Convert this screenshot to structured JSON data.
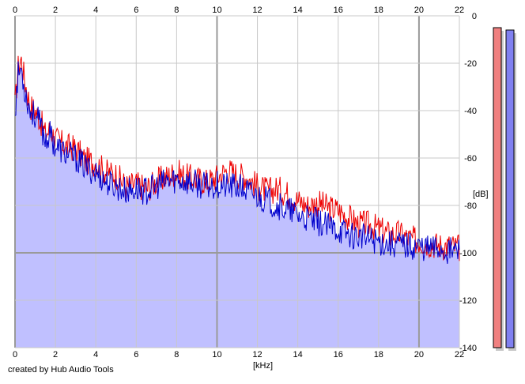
{
  "footer": {
    "credit": "created by Hub Audio Tools"
  },
  "colors": {
    "background": "#ffffff",
    "plot_fill": "#c0c0ff",
    "grid_minor": "#c8c8c8",
    "grid_major": "#9a9a9a",
    "left_channel": "#ee0000",
    "right_channel": "#0000cc",
    "left_meter": "#f08080",
    "right_meter": "#8080f0",
    "meter_shadow": "#c8c8c8"
  },
  "meters": {
    "left": {
      "name": "left-channel-level-meter",
      "level_db": -5
    },
    "right": {
      "name": "right-channel-level-meter",
      "level_db": -6
    }
  },
  "chart_data": {
    "type": "line",
    "xlabel": "[kHz]",
    "ylabel": "[dB]",
    "xlim": [
      0,
      22
    ],
    "ylim": [
      -140,
      0
    ],
    "x_ticks": [
      0,
      2,
      4,
      6,
      8,
      10,
      12,
      14,
      16,
      18,
      20,
      22
    ],
    "y_ticks": [
      0,
      -20,
      -40,
      -60,
      -80,
      -100,
      -120,
      -140
    ],
    "grid": true,
    "legend": "none",
    "series": [
      {
        "color": "#ee0000",
        "x": [
          0,
          0.15,
          0.3,
          0.5,
          0.75,
          1,
          1.25,
          1.5,
          1.75,
          2,
          2.5,
          3,
          3.5,
          4,
          4.5,
          5,
          5.5,
          6,
          6.5,
          7,
          7.5,
          8,
          8.5,
          9,
          9.5,
          10,
          10.5,
          11,
          11.5,
          12,
          12.5,
          13,
          13.5,
          14,
          14.5,
          15,
          15.5,
          16,
          16.5,
          17,
          17.5,
          18,
          18.5,
          19,
          19.5,
          20,
          20.5,
          21,
          21.5,
          22
        ],
        "y": [
          -38,
          -22,
          -18,
          -28,
          -38,
          -40,
          -44,
          -50,
          -48,
          -52,
          -55,
          -56,
          -61,
          -62,
          -66,
          -67,
          -72,
          -71,
          -73,
          -70,
          -68,
          -66,
          -68,
          -69,
          -70,
          -68,
          -65,
          -67,
          -68,
          -72,
          -74,
          -73,
          -75,
          -78,
          -80,
          -79,
          -81,
          -82,
          -85,
          -88,
          -88,
          -90,
          -92,
          -92,
          -94,
          -95,
          -96,
          -97,
          -97,
          -98
        ]
      },
      {
        "color": "#0000cc",
        "x": [
          0,
          0.15,
          0.3,
          0.5,
          0.75,
          1,
          1.25,
          1.5,
          1.75,
          2,
          2.5,
          3,
          3.5,
          4,
          4.5,
          5,
          5.5,
          6,
          6.5,
          7,
          7.5,
          8,
          8.5,
          9,
          9.5,
          10,
          10.5,
          11,
          11.5,
          12,
          12.5,
          13,
          13.5,
          14,
          14.5,
          15,
          15.5,
          16,
          16.5,
          17,
          17.5,
          18,
          18.5,
          19,
          19.5,
          20,
          20.5,
          21,
          21.5,
          22
        ],
        "y": [
          -40,
          -25,
          -22,
          -32,
          -40,
          -42,
          -46,
          -52,
          -50,
          -55,
          -58,
          -60,
          -64,
          -66,
          -70,
          -72,
          -74,
          -73,
          -74,
          -72,
          -70,
          -69,
          -70,
          -71,
          -72,
          -71,
          -72,
          -72,
          -74,
          -76,
          -78,
          -80,
          -82,
          -84,
          -86,
          -87,
          -89,
          -90,
          -92,
          -93,
          -94,
          -95,
          -96,
          -96,
          -97,
          -97,
          -98,
          -98,
          -99,
          -99
        ]
      }
    ]
  }
}
